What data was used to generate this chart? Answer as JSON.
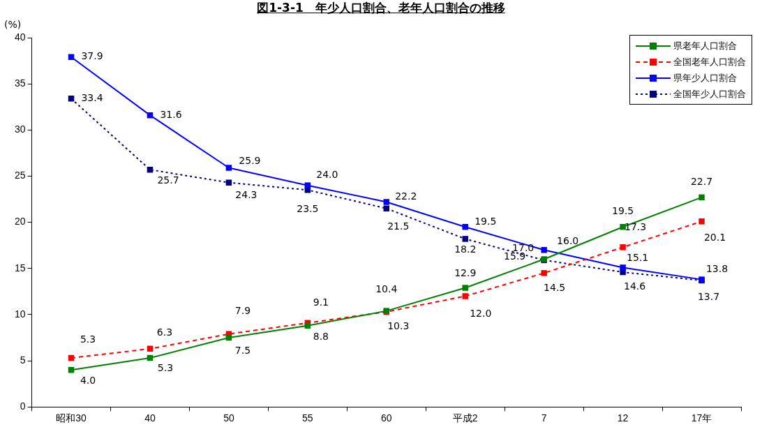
{
  "chart_data": {
    "type": "line",
    "title": "図1-3-1　年少人口割合、老年人口割合の推移",
    "ylabel": "(%)",
    "categories": [
      "昭和30",
      "40",
      "50",
      "55",
      "60",
      "平成2",
      "7",
      "12",
      "17年"
    ],
    "series": [
      {
        "name": "県老年人口割合",
        "color": "#008000",
        "line_style": "solid",
        "values": [
          4.0,
          5.3,
          7.5,
          8.8,
          10.4,
          12.9,
          16.0,
          19.5,
          22.7
        ],
        "value_labels": [
          "4.0",
          "5.3",
          "7.5",
          "8.8",
          "10.4",
          "12.9",
          "16.0",
          "19.5",
          "22.7"
        ]
      },
      {
        "name": "全国老年人口割合",
        "color": "#ff0000",
        "line_style": "dashed",
        "values": [
          5.3,
          6.3,
          7.9,
          9.1,
          10.3,
          12.0,
          14.5,
          17.3,
          20.1
        ],
        "value_labels": [
          "5.3",
          "6.3",
          "7.9",
          "9.1",
          "10.3",
          "12.0",
          "14.5",
          "17.3",
          "20.1"
        ]
      },
      {
        "name": "県年少人口割合",
        "color": "#0000ff",
        "line_style": "solid",
        "values": [
          37.9,
          31.6,
          25.9,
          24.0,
          22.2,
          19.5,
          17.0,
          15.1,
          13.8
        ],
        "value_labels": [
          "37.9",
          "31.6",
          "25.9",
          "24.0",
          "22.2",
          "19.5",
          "17.0",
          "15.1",
          "13.8"
        ]
      },
      {
        "name": "全国年少人口割合",
        "color": "#000080",
        "line_style": "dotted",
        "values": [
          33.4,
          25.7,
          24.3,
          23.5,
          21.5,
          18.2,
          15.9,
          14.6,
          13.7
        ],
        "value_labels": [
          "33.4",
          "25.7",
          "24.3",
          "23.5",
          "21.5",
          "18.2",
          "15.9",
          "14.6",
          "13.7"
        ]
      }
    ],
    "ylim": [
      0,
      40
    ],
    "yticks": [
      0,
      5,
      10,
      15,
      20,
      25,
      30,
      35,
      40
    ],
    "legend": "top right",
    "marker": "square"
  }
}
